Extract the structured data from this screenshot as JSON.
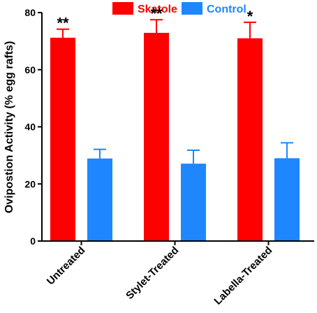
{
  "chart_data": {
    "type": "bar",
    "title": "",
    "xlabel": "",
    "ylabel": "Ovipostion Activity (% egg rafts)",
    "ylim": [
      0,
      80
    ],
    "yticks": [
      0,
      20,
      40,
      60,
      80
    ],
    "grid": false,
    "legend_position": "top",
    "categories": [
      "Untreated",
      "Stylet-Treated",
      "Labella-Treated"
    ],
    "series": [
      {
        "name": "Skatole",
        "color": "#ff0000",
        "values": [
          71.2,
          72.9,
          71.0
        ],
        "errors": [
          3.0,
          4.6,
          5.6
        ],
        "significance": [
          "**",
          "**",
          "*"
        ]
      },
      {
        "name": "Control",
        "color": "#1e87ff",
        "values": [
          28.9,
          27.1,
          29.0
        ],
        "errors": [
          3.2,
          4.7,
          5.4
        ],
        "significance": [
          "",
          "",
          ""
        ]
      }
    ]
  }
}
